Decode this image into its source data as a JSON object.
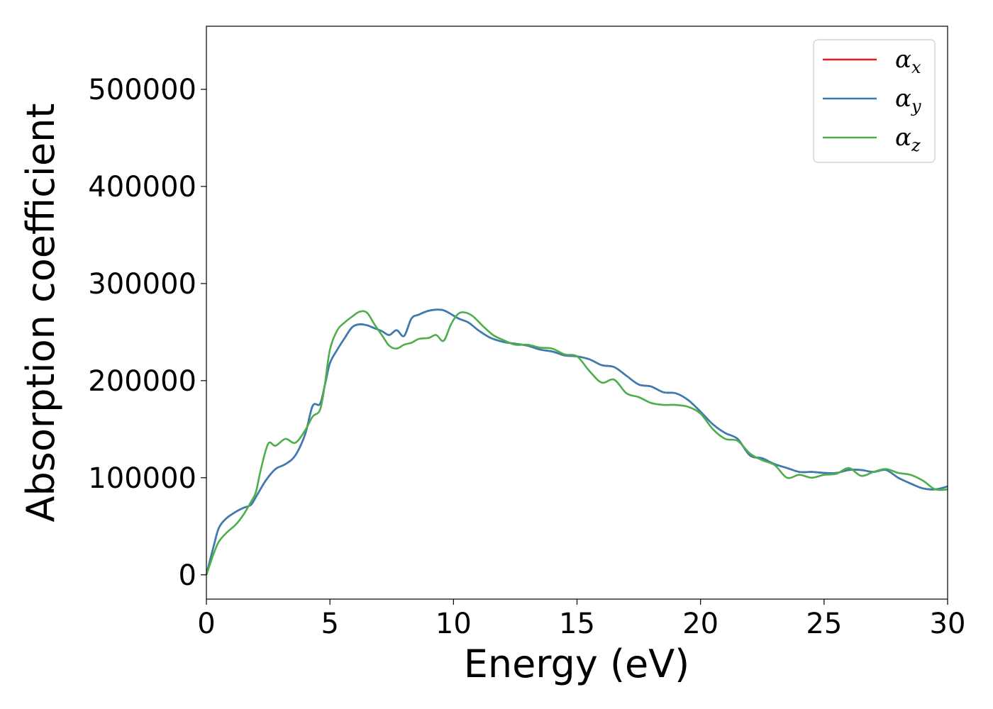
{
  "chart_data": {
    "type": "line",
    "xlabel": "Energy (eV)",
    "ylabel": "Absorption coefficient",
    "xlim": [
      0,
      30
    ],
    "ylim": [
      -25000,
      565000
    ],
    "xticks": [
      "0",
      "5",
      "10",
      "15",
      "20",
      "25",
      "30"
    ],
    "yticks": [
      "0",
      "100000",
      "200000",
      "300000",
      "400000",
      "500000"
    ],
    "grid": false,
    "legend_position": "top-right",
    "series": [
      {
        "name": "α",
        "subscript": "x",
        "color": "#e41a1c",
        "x": [
          0,
          0.3,
          0.5,
          0.8,
          1.2,
          1.5,
          1.8,
          2.0,
          2.4,
          2.8,
          3.2,
          3.6,
          4.0,
          4.3,
          4.6,
          4.8,
          5.0,
          5.3,
          5.6,
          5.9,
          6.2,
          6.5,
          6.8,
          7.1,
          7.4,
          7.7,
          8.0,
          8.3,
          8.6,
          9.0,
          9.5,
          9.8,
          10.2,
          10.6,
          11.0,
          11.5,
          12.0,
          12.5,
          13.0,
          13.5,
          14.0,
          14.5,
          15.0,
          15.5,
          16.0,
          16.5,
          17.0,
          17.5,
          18.0,
          18.5,
          19.0,
          19.5,
          20.0,
          20.5,
          21.0,
          21.5,
          22.0,
          22.5,
          23.0,
          23.5,
          24.0,
          24.5,
          25.0,
          25.5,
          26.0,
          26.5,
          27.0,
          27.5,
          28.0,
          28.5,
          29.0,
          29.5,
          30.0
        ],
        "y": [
          0,
          30000,
          48000,
          58000,
          65000,
          69000,
          72000,
          80000,
          97000,
          109000,
          114000,
          123000,
          145000,
          174000,
          176000,
          196000,
          218000,
          232000,
          244000,
          255000,
          258000,
          257000,
          254000,
          251000,
          247000,
          252000,
          246000,
          264000,
          268000,
          272000,
          273000,
          270000,
          264000,
          260000,
          252000,
          244000,
          240000,
          238000,
          236000,
          232000,
          230000,
          226000,
          225000,
          222000,
          216000,
          214000,
          205000,
          196000,
          194000,
          188000,
          187000,
          180000,
          168000,
          155000,
          146000,
          140000,
          123000,
          120000,
          114000,
          110000,
          106000,
          106000,
          105000,
          105000,
          108000,
          108000,
          106000,
          108000,
          100000,
          94000,
          89000,
          88000,
          91000
        ]
      },
      {
        "name": "α",
        "subscript": "y",
        "color": "#377eb8",
        "x": [
          0,
          0.3,
          0.5,
          0.8,
          1.2,
          1.5,
          1.8,
          2.0,
          2.4,
          2.8,
          3.2,
          3.6,
          4.0,
          4.3,
          4.6,
          4.8,
          5.0,
          5.3,
          5.6,
          5.9,
          6.2,
          6.5,
          6.8,
          7.1,
          7.4,
          7.7,
          8.0,
          8.3,
          8.6,
          9.0,
          9.5,
          9.8,
          10.2,
          10.6,
          11.0,
          11.5,
          12.0,
          12.5,
          13.0,
          13.5,
          14.0,
          14.5,
          15.0,
          15.5,
          16.0,
          16.5,
          17.0,
          17.5,
          18.0,
          18.5,
          19.0,
          19.5,
          20.0,
          20.5,
          21.0,
          21.5,
          22.0,
          22.5,
          23.0,
          23.5,
          24.0,
          24.5,
          25.0,
          25.5,
          26.0,
          26.5,
          27.0,
          27.5,
          28.0,
          28.5,
          29.0,
          29.5,
          30.0
        ],
        "y": [
          0,
          30000,
          48000,
          58000,
          65000,
          69000,
          72000,
          80000,
          97000,
          109000,
          114000,
          123000,
          145000,
          174000,
          176000,
          196000,
          218000,
          232000,
          244000,
          255000,
          258000,
          257000,
          254000,
          251000,
          247000,
          252000,
          246000,
          264000,
          268000,
          272000,
          273000,
          270000,
          264000,
          260000,
          252000,
          244000,
          240000,
          238000,
          236000,
          232000,
          230000,
          226000,
          225000,
          222000,
          216000,
          214000,
          205000,
          196000,
          194000,
          188000,
          187000,
          180000,
          168000,
          155000,
          146000,
          140000,
          123000,
          120000,
          114000,
          110000,
          106000,
          106000,
          105000,
          105000,
          108000,
          108000,
          106000,
          108000,
          100000,
          94000,
          89000,
          88000,
          91000
        ]
      },
      {
        "name": "α",
        "subscript": "z",
        "color": "#4daf4a",
        "x": [
          0,
          0.3,
          0.5,
          0.8,
          1.2,
          1.5,
          1.8,
          2.0,
          2.2,
          2.5,
          2.8,
          3.2,
          3.6,
          4.0,
          4.3,
          4.6,
          4.8,
          5.0,
          5.3,
          5.6,
          5.9,
          6.2,
          6.5,
          6.8,
          7.1,
          7.4,
          7.7,
          8.0,
          8.3,
          8.6,
          9.0,
          9.3,
          9.6,
          9.9,
          10.2,
          10.5,
          10.8,
          11.2,
          11.6,
          12.0,
          12.5,
          13.0,
          13.5,
          14.0,
          14.5,
          15.0,
          15.5,
          16.0,
          16.5,
          17.0,
          17.5,
          18.0,
          18.5,
          19.0,
          19.5,
          20.0,
          20.5,
          21.0,
          21.5,
          22.0,
          22.5,
          23.0,
          23.5,
          24.0,
          24.5,
          25.0,
          25.5,
          26.0,
          26.5,
          27.0,
          27.5,
          28.0,
          28.5,
          29.0,
          29.5,
          30.0
        ],
        "y": [
          0,
          22000,
          34000,
          43000,
          52000,
          62000,
          75000,
          85000,
          108000,
          135000,
          133000,
          140000,
          136000,
          149000,
          163000,
          170000,
          197000,
          232000,
          252000,
          260000,
          266000,
          271000,
          270000,
          258000,
          247000,
          236000,
          233000,
          237000,
          239000,
          243000,
          244000,
          247000,
          241000,
          258000,
          269000,
          270000,
          266000,
          256000,
          247000,
          242000,
          237000,
          237000,
          234000,
          233000,
          227000,
          225000,
          210000,
          198000,
          201000,
          187000,
          183000,
          177000,
          175000,
          175000,
          173000,
          166000,
          150000,
          140000,
          138000,
          125000,
          118000,
          113000,
          100000,
          103000,
          100000,
          103000,
          104000,
          110000,
          102000,
          106000,
          109000,
          105000,
          103000,
          97000,
          88000,
          88000
        ]
      }
    ]
  }
}
